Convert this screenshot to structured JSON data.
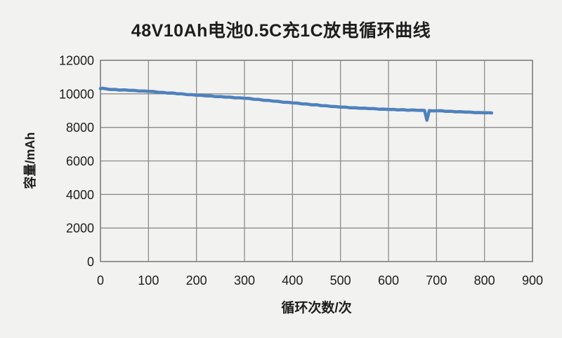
{
  "chart_data": {
    "type": "line",
    "title": "48V10Ah电池0.5C充1C放电循环曲线",
    "xlabel": "循环次数/次",
    "ylabel": "容量/mAh",
    "xlim": [
      0,
      900
    ],
    "ylim": [
      0,
      12000
    ],
    "x_ticks": [
      0,
      100,
      200,
      300,
      400,
      500,
      600,
      700,
      800,
      900
    ],
    "y_ticks": [
      0,
      2000,
      4000,
      6000,
      8000,
      10000,
      12000
    ],
    "grid": true,
    "legend": "none",
    "colors": {
      "line": "#4F81BD",
      "gridline": "#8c8c8c",
      "plot_border": "#7f7f7f",
      "background": "#f2f2f0",
      "text": "#1d1d1d"
    },
    "series": [
      {
        "name": "capacity",
        "points": [
          [
            0,
            10310
          ],
          [
            5,
            10330
          ],
          [
            10,
            10305
          ],
          [
            20,
            10260
          ],
          [
            30,
            10265
          ],
          [
            40,
            10225
          ],
          [
            50,
            10240
          ],
          [
            60,
            10205
          ],
          [
            70,
            10205
          ],
          [
            80,
            10170
          ],
          [
            90,
            10170
          ],
          [
            100,
            10150
          ],
          [
            110,
            10140
          ],
          [
            120,
            10095
          ],
          [
            130,
            10090
          ],
          [
            140,
            10045
          ],
          [
            150,
            10050
          ],
          [
            160,
            10005
          ],
          [
            170,
            10000
          ],
          [
            180,
            9955
          ],
          [
            190,
            9950
          ],
          [
            200,
            9920
          ],
          [
            210,
            9915
          ],
          [
            220,
            9875
          ],
          [
            230,
            9875
          ],
          [
            240,
            9835
          ],
          [
            250,
            9840
          ],
          [
            260,
            9805
          ],
          [
            270,
            9805
          ],
          [
            280,
            9765
          ],
          [
            290,
            9765
          ],
          [
            300,
            9740
          ],
          [
            310,
            9725
          ],
          [
            320,
            9675
          ],
          [
            330,
            9665
          ],
          [
            340,
            9615
          ],
          [
            350,
            9610
          ],
          [
            360,
            9565
          ],
          [
            370,
            9555
          ],
          [
            380,
            9505
          ],
          [
            390,
            9495
          ],
          [
            400,
            9460
          ],
          [
            410,
            9450
          ],
          [
            420,
            9400
          ],
          [
            430,
            9395
          ],
          [
            440,
            9345
          ],
          [
            450,
            9350
          ],
          [
            460,
            9300
          ],
          [
            470,
            9295
          ],
          [
            480,
            9250
          ],
          [
            490,
            9240
          ],
          [
            500,
            9210
          ],
          [
            510,
            9210
          ],
          [
            520,
            9170
          ],
          [
            530,
            9175
          ],
          [
            540,
            9140
          ],
          [
            550,
            9150
          ],
          [
            560,
            9120
          ],
          [
            570,
            9120
          ],
          [
            580,
            9085
          ],
          [
            590,
            9090
          ],
          [
            600,
            9070
          ],
          [
            610,
            9075
          ],
          [
            620,
            9045
          ],
          [
            630,
            9055
          ],
          [
            640,
            9025
          ],
          [
            650,
            9040
          ],
          [
            660,
            9015
          ],
          [
            670,
            9025
          ],
          [
            675,
            9010
          ],
          [
            680,
            8430
          ],
          [
            685,
            9005
          ],
          [
            690,
            8985
          ],
          [
            700,
            8990
          ],
          [
            710,
            8995
          ],
          [
            720,
            8955
          ],
          [
            730,
            8960
          ],
          [
            740,
            8925
          ],
          [
            750,
            8940
          ],
          [
            760,
            8910
          ],
          [
            770,
            8915
          ],
          [
            780,
            8880
          ],
          [
            790,
            8885
          ],
          [
            800,
            8870
          ],
          [
            810,
            8875
          ],
          [
            815,
            8860
          ]
        ]
      }
    ]
  }
}
